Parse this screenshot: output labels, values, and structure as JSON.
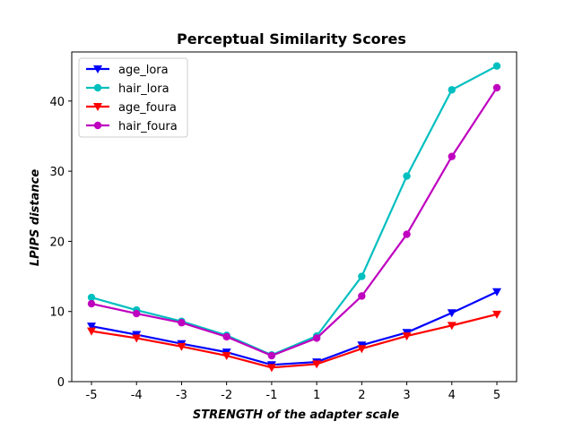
{
  "chart_data": {
    "type": "line",
    "title": "Perceptual Similarity Scores",
    "xlabel": "STRENGTH of the adapter scale",
    "ylabel": "LPIPS distance",
    "x": [
      "-5",
      "-4",
      "-3",
      "-2",
      "-1",
      "1",
      "2",
      "3",
      "4",
      "5"
    ],
    "ylim": [
      0,
      47
    ],
    "yticks": [
      0,
      10,
      20,
      30,
      40
    ],
    "grid": false,
    "legend_position": "top-left",
    "series": [
      {
        "name": "age_lora",
        "color": "#0000ff",
        "marker": "triangle-down",
        "values": [
          7.9,
          6.7,
          5.4,
          4.2,
          2.4,
          2.8,
          5.2,
          7.0,
          9.8,
          12.8
        ]
      },
      {
        "name": "hair_lora",
        "color": "#00bfbf",
        "marker": "circle",
        "values": [
          12.0,
          10.2,
          8.6,
          6.6,
          3.8,
          6.5,
          15.0,
          29.3,
          41.6,
          45.0
        ]
      },
      {
        "name": "age_foura",
        "color": "#ff0000",
        "marker": "triangle-down",
        "values": [
          7.2,
          6.2,
          5.0,
          3.7,
          2.0,
          2.5,
          4.7,
          6.5,
          8.0,
          9.6
        ]
      },
      {
        "name": "hair_foura",
        "color": "#bf00bf",
        "marker": "circle",
        "values": [
          11.1,
          9.7,
          8.4,
          6.4,
          3.7,
          6.2,
          12.2,
          21.0,
          32.1,
          41.9
        ]
      }
    ]
  }
}
